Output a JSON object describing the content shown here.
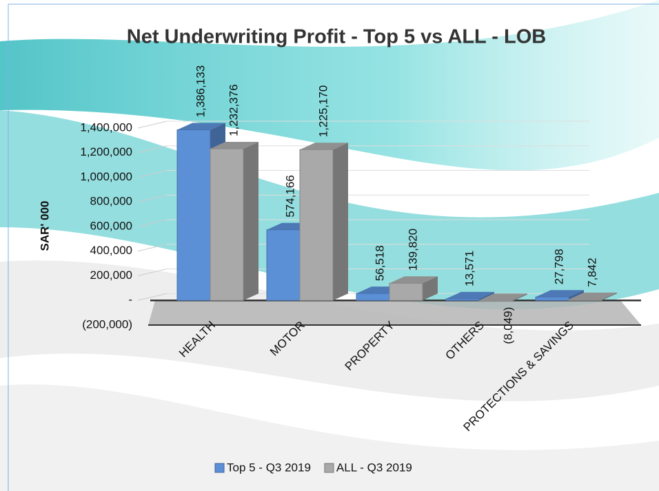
{
  "chart_data": {
    "type": "bar3d",
    "title": "Net Underwriting Profit - Top 5 vs ALL - LOB",
    "y_label": "SAR' 000",
    "categories": [
      "HEALTH",
      "MOTOR",
      "PROPERTY",
      "OTHERS",
      "PROTECTIONS & SAVINGS"
    ],
    "series": [
      {
        "name": "Top 5 - Q3 2019",
        "color": "#5b8fd6",
        "values": [
          1386133,
          574166,
          56518,
          13571,
          27798
        ],
        "value_labels": [
          "1,386,133",
          "574,166",
          "56,518",
          "13,571",
          "27,798"
        ]
      },
      {
        "name": "ALL - Q3 2019",
        "color": "#a9a9a9",
        "values": [
          1232376,
          1225170,
          139820,
          -8049,
          7842
        ],
        "value_labels": [
          "1,232,376",
          "1,225,170",
          "139,820",
          "(8,049)",
          "7,842"
        ]
      }
    ],
    "ylim": [
      -200000,
      1400000
    ],
    "yticks": [
      {
        "value": -200000,
        "label": "(200,000)"
      },
      {
        "value": 0,
        "label": "-"
      },
      {
        "value": 200000,
        "label": "200,000"
      },
      {
        "value": 400000,
        "label": "400,000"
      },
      {
        "value": 600000,
        "label": "600,000"
      },
      {
        "value": 800000,
        "label": "800,000"
      },
      {
        "value": 1000000,
        "label": "1,000,000"
      },
      {
        "value": 1200000,
        "label": "1,200,000"
      },
      {
        "value": 1400000,
        "label": "1,400,000"
      }
    ],
    "grid": true,
    "legend": "bottom"
  }
}
